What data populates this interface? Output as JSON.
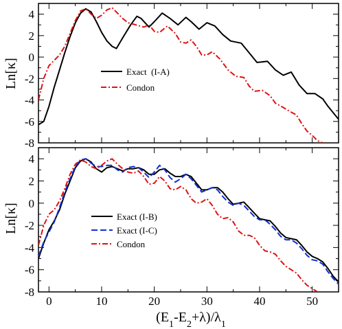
{
  "chart_data": [
    {
      "type": "line",
      "panel": "top",
      "ylabel": "Ln[κ]",
      "xlabel": "",
      "xlim": [
        -2,
        55
      ],
      "ylim": [
        -8,
        5
      ],
      "yticks": [
        4,
        2,
        0,
        -2,
        -4,
        -6,
        -8
      ],
      "xticks": [
        0,
        10,
        20,
        30,
        40,
        50
      ],
      "show_xtick_labels": false,
      "grid": false,
      "legend_position": "center-left",
      "series": [
        {
          "name": "Exact  (I-A)",
          "color": "#000000",
          "dash": "solid",
          "points": [
            [
              -2,
              -6.3
            ],
            [
              -1,
              -6.0
            ],
            [
              0,
              -4.6
            ],
            [
              1,
              -2.8
            ],
            [
              2,
              -1.2
            ],
            [
              3,
              0.4
            ],
            [
              4,
              1.9
            ],
            [
              5,
              3.2
            ],
            [
              6,
              4.1
            ],
            [
              7,
              4.5
            ],
            [
              8,
              4.2
            ],
            [
              9,
              3.3
            ],
            [
              10,
              2.3
            ],
            [
              11,
              1.5
            ],
            [
              12,
              1.0
            ],
            [
              12.8,
              0.8
            ],
            [
              14,
              1.8
            ],
            [
              15.5,
              3.0
            ],
            [
              16.7,
              3.8
            ],
            [
              17.5,
              3.6
            ],
            [
              19,
              2.8
            ],
            [
              20,
              3.3
            ],
            [
              21.5,
              4.1
            ],
            [
              23,
              3.6
            ],
            [
              24.5,
              3.0
            ],
            [
              26,
              3.7
            ],
            [
              27,
              3.3
            ],
            [
              28.5,
              2.6
            ],
            [
              30,
              3.2
            ],
            [
              31.5,
              2.9
            ],
            [
              33,
              2.1
            ],
            [
              34.5,
              1.5
            ],
            [
              36.5,
              1.3
            ],
            [
              38,
              0.4
            ],
            [
              39.5,
              -0.5
            ],
            [
              41.5,
              -0.4
            ],
            [
              43,
              -1.2
            ],
            [
              44.5,
              -1.7
            ],
            [
              46,
              -1.4
            ],
            [
              47.5,
              -2.6
            ],
            [
              49,
              -3.4
            ],
            [
              50.5,
              -3.4
            ],
            [
              52,
              -3.9
            ],
            [
              53,
              -4.6
            ],
            [
              54.5,
              -5.5
            ],
            [
              55,
              -5.8
            ]
          ]
        },
        {
          "name": "Condon",
          "color": "#e01010",
          "dash": "dashdot",
          "points": [
            [
              -2,
              -4.0
            ],
            [
              -1,
              -2.0
            ],
            [
              0,
              -0.8
            ],
            [
              1,
              -0.3
            ],
            [
              2,
              0.2
            ],
            [
              3,
              1.0
            ],
            [
              4,
              2.2
            ],
            [
              5,
              3.4
            ],
            [
              6,
              4.3
            ],
            [
              7,
              4.5
            ],
            [
              8,
              4.0
            ],
            [
              9,
              3.6
            ],
            [
              10,
              3.9
            ],
            [
              11,
              4.4
            ],
            [
              12,
              4.6
            ],
            [
              13,
              4.1
            ],
            [
              14,
              3.6
            ],
            [
              15,
              3.2
            ],
            [
              16.5,
              3.0
            ],
            [
              18,
              2.8
            ],
            [
              19,
              3.0
            ],
            [
              20,
              2.4
            ],
            [
              21,
              2.3
            ],
            [
              22.5,
              2.9
            ],
            [
              24,
              2.2
            ],
            [
              25,
              1.4
            ],
            [
              26,
              1.3
            ],
            [
              27,
              1.6
            ],
            [
              28,
              1.0
            ],
            [
              29,
              0.2
            ],
            [
              30,
              0.2
            ],
            [
              31,
              0.5
            ],
            [
              32.5,
              -0.2
            ],
            [
              34,
              -1.2
            ],
            [
              35.5,
              -1.8
            ],
            [
              37,
              -1.9
            ],
            [
              38,
              -2.7
            ],
            [
              39,
              -3.2
            ],
            [
              40.5,
              -3.1
            ],
            [
              42,
              -3.6
            ],
            [
              43,
              -4.3
            ],
            [
              44.5,
              -4.7
            ],
            [
              45.5,
              -5.0
            ],
            [
              47,
              -5.4
            ],
            [
              48,
              -6.2
            ],
            [
              49,
              -6.9
            ],
            [
              50,
              -7.3
            ],
            [
              51,
              -7.8
            ],
            [
              52,
              -8.0
            ]
          ]
        }
      ]
    },
    {
      "type": "line",
      "panel": "bottom",
      "ylabel": "Ln[κ]",
      "xlabel": "(E1-E2+λ)/λ1",
      "xlim": [
        -2,
        55
      ],
      "ylim": [
        -8,
        5
      ],
      "yticks": [
        4,
        2,
        0,
        -2,
        -4,
        -6,
        -8
      ],
      "xticks": [
        0,
        10,
        20,
        30,
        40,
        50
      ],
      "show_xtick_labels": true,
      "grid": false,
      "legend_position": "center-left",
      "series": [
        {
          "name": "Exact (I-B)",
          "color": "#000000",
          "dash": "solid",
          "points": [
            [
              -2,
              -5.0
            ],
            [
              -1,
              -3.6
            ],
            [
              0,
              -2.4
            ],
            [
              1,
              -1.6
            ],
            [
              2,
              -0.6
            ],
            [
              3,
              0.8
            ],
            [
              4,
              2.0
            ],
            [
              5,
              3.2
            ],
            [
              6,
              3.8
            ],
            [
              7,
              4.0
            ],
            [
              8,
              3.7
            ],
            [
              9,
              3.1
            ],
            [
              10,
              2.8
            ],
            [
              11,
              3.2
            ],
            [
              12,
              3.3
            ],
            [
              13,
              3.1
            ],
            [
              14,
              2.9
            ],
            [
              15,
              3.1
            ],
            [
              16,
              3.1
            ],
            [
              17,
              3.2
            ],
            [
              18,
              3.0
            ],
            [
              19,
              2.6
            ],
            [
              20,
              2.6
            ],
            [
              21,
              3.0
            ],
            [
              22,
              3.1
            ],
            [
              23,
              2.7
            ],
            [
              24,
              2.4
            ],
            [
              25,
              2.4
            ],
            [
              26,
              2.6
            ],
            [
              27,
              2.4
            ],
            [
              28,
              1.8
            ],
            [
              29,
              1.2
            ],
            [
              30,
              1.2
            ],
            [
              31,
              1.4
            ],
            [
              32,
              1.4
            ],
            [
              33,
              1.0
            ],
            [
              34,
              0.4
            ],
            [
              35,
              -0.1
            ],
            [
              36,
              0.0
            ],
            [
              37,
              0.1
            ],
            [
              38,
              -0.4
            ],
            [
              39,
              -0.9
            ],
            [
              40,
              -1.4
            ],
            [
              41,
              -1.5
            ],
            [
              42,
              -1.6
            ],
            [
              43,
              -2.1
            ],
            [
              44,
              -2.7
            ],
            [
              45,
              -3.1
            ],
            [
              46,
              -3.2
            ],
            [
              47,
              -3.3
            ],
            [
              48,
              -3.8
            ],
            [
              49,
              -4.4
            ],
            [
              50,
              -4.8
            ],
            [
              51,
              -5.0
            ],
            [
              52,
              -5.3
            ],
            [
              53,
              -5.9
            ],
            [
              54,
              -6.6
            ],
            [
              55,
              -7.1
            ]
          ]
        },
        {
          "name": "Exact (I-C)",
          "color": "#1030d0",
          "dash": "dashed",
          "points": [
            [
              -2,
              -4.8
            ],
            [
              -1,
              -3.5
            ],
            [
              0,
              -2.6
            ],
            [
              1,
              -1.7
            ],
            [
              2,
              -0.4
            ],
            [
              3,
              1.0
            ],
            [
              4,
              2.2
            ],
            [
              5,
              3.3
            ],
            [
              6,
              3.9
            ],
            [
              7,
              4.0
            ],
            [
              8,
              3.6
            ],
            [
              9,
              3.3
            ],
            [
              10,
              3.3
            ],
            [
              11,
              3.4
            ],
            [
              12,
              3.4
            ],
            [
              13,
              3.0
            ],
            [
              14,
              2.8
            ],
            [
              15,
              3.2
            ],
            [
              16,
              3.3
            ],
            [
              17,
              3.2
            ],
            [
              18,
              2.8
            ],
            [
              19,
              2.3
            ],
            [
              20,
              2.8
            ],
            [
              21,
              3.4
            ],
            [
              22,
              3.0
            ],
            [
              23,
              2.3
            ],
            [
              24,
              1.9
            ],
            [
              25,
              2.2
            ],
            [
              26,
              2.6
            ],
            [
              27,
              2.2
            ],
            [
              28,
              1.6
            ],
            [
              29,
              1.0
            ],
            [
              30,
              1.2
            ],
            [
              31,
              1.4
            ],
            [
              32,
              1.2
            ],
            [
              33,
              0.6
            ],
            [
              34,
              0.1
            ],
            [
              35,
              -0.2
            ],
            [
              36,
              0.0
            ],
            [
              37,
              -0.2
            ],
            [
              38,
              -0.7
            ],
            [
              39,
              -1.2
            ],
            [
              40,
              -1.5
            ],
            [
              41,
              -1.5
            ],
            [
              42,
              -1.9
            ],
            [
              43,
              -2.4
            ],
            [
              44,
              -3.0
            ],
            [
              45,
              -3.3
            ],
            [
              46,
              -3.3
            ],
            [
              47,
              -3.6
            ],
            [
              48,
              -4.1
            ],
            [
              49,
              -4.7
            ],
            [
              50,
              -5.1
            ],
            [
              51,
              -5.2
            ],
            [
              52,
              -5.5
            ],
            [
              53,
              -6.2
            ],
            [
              54,
              -6.8
            ],
            [
              55,
              -7.3
            ]
          ]
        },
        {
          "name": "Condon",
          "color": "#e01010",
          "dash": "dashdot",
          "points": [
            [
              -2,
              -3.8
            ],
            [
              -1,
              -2.0
            ],
            [
              0,
              -1.0
            ],
            [
              1,
              -0.6
            ],
            [
              2,
              0.2
            ],
            [
              3,
              1.3
            ],
            [
              4,
              2.6
            ],
            [
              5,
              3.5
            ],
            [
              6,
              3.9
            ],
            [
              7,
              3.7
            ],
            [
              8,
              3.3
            ],
            [
              9,
              3.1
            ],
            [
              10,
              3.4
            ],
            [
              11,
              3.8
            ],
            [
              12,
              4.0
            ],
            [
              13,
              3.5
            ],
            [
              14,
              3.1
            ],
            [
              15,
              2.8
            ],
            [
              16,
              2.7
            ],
            [
              17,
              2.9
            ],
            [
              18,
              2.4
            ],
            [
              19,
              1.7
            ],
            [
              20,
              1.8
            ],
            [
              21,
              2.4
            ],
            [
              22,
              2.0
            ],
            [
              23,
              1.3
            ],
            [
              24,
              1.2
            ],
            [
              25,
              1.5
            ],
            [
              26,
              1.2
            ],
            [
              27,
              0.4
            ],
            [
              28,
              0.0
            ],
            [
              29,
              0.1
            ],
            [
              30,
              0.4
            ],
            [
              31,
              -0.2
            ],
            [
              32,
              -1.0
            ],
            [
              33,
              -1.4
            ],
            [
              34,
              -1.3
            ],
            [
              35,
              -1.7
            ],
            [
              36,
              -2.5
            ],
            [
              37,
              -2.9
            ],
            [
              38,
              -2.9
            ],
            [
              39,
              -3.1
            ],
            [
              40,
              -3.8
            ],
            [
              41,
              -4.3
            ],
            [
              42,
              -4.4
            ],
            [
              43,
              -4.6
            ],
            [
              44,
              -5.2
            ],
            [
              45,
              -5.7
            ],
            [
              46,
              -6.0
            ],
            [
              47,
              -6.3
            ],
            [
              48,
              -6.9
            ],
            [
              49,
              -7.4
            ],
            [
              50,
              -7.7
            ],
            [
              51,
              -8.0
            ]
          ]
        }
      ]
    }
  ]
}
